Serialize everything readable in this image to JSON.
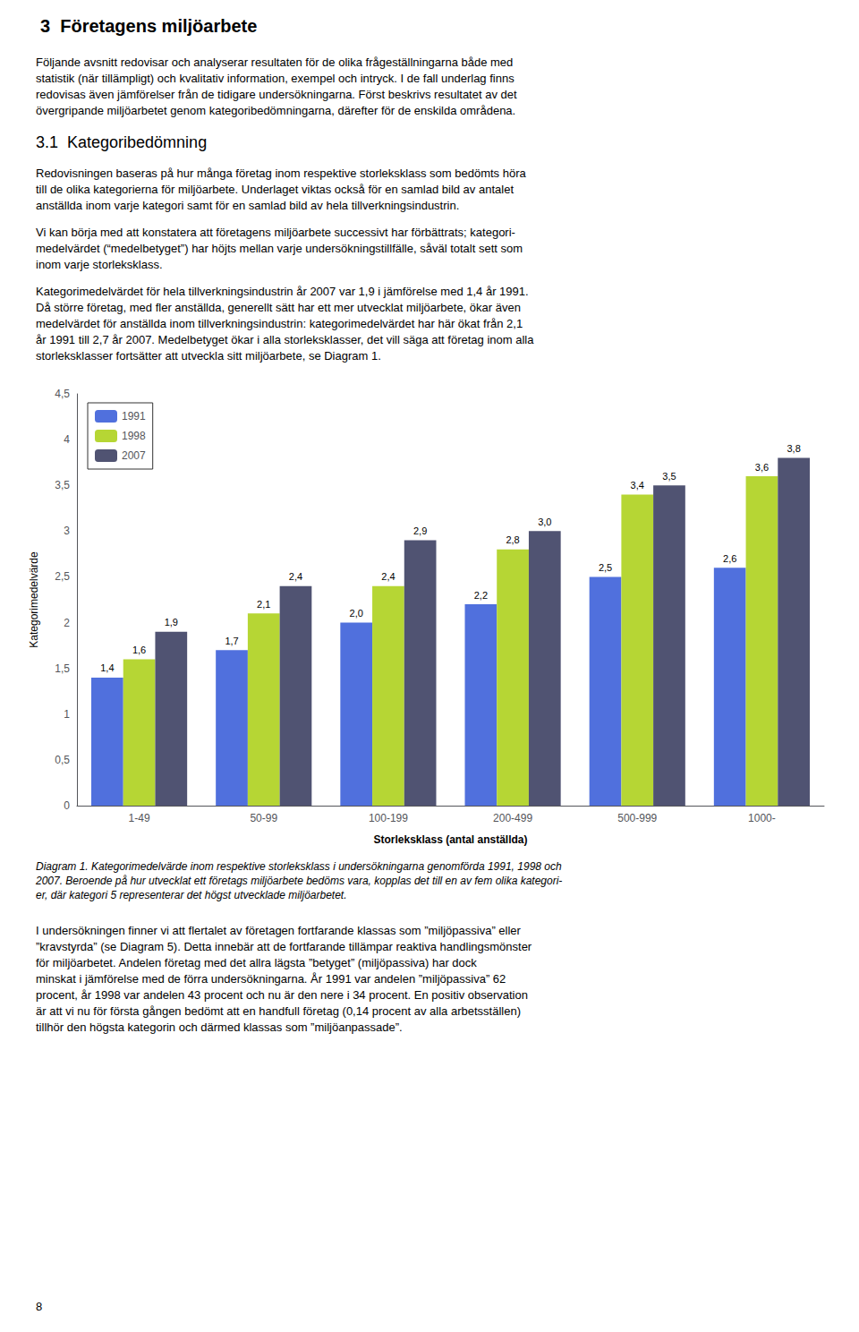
{
  "chart_data": {
    "type": "bar",
    "title": "3  Företagens miljöarbete",
    "subtitle": "3.1  Kategoribedömning",
    "annotations": [
      "Följande avsnitt redovisar och analyserar resultaten för de olika frågeställningarna både med\nstatistik (när tillämpligt) och kvalitativ information, exempel och intryck. I de fall underlag finns\nredovisas även jämförelser från de tidigare undersökningarna. Först beskrivs resultatet av det\növergripande miljöarbetet genom kategoribedömningarna, därefter för de enskilda områdena.",
      "Redovisningen baseras på hur många företag inom respektive storleksklass som bedömts höra\ntill de olika kategorierna för miljöarbete. Underlaget viktas också för en samlad bild av antalet\nanställda inom varje kategori samt för en samlad bild av hela tillverkningsindustrin.",
      "Vi kan börja med att konstatera att företagens miljöarbete successivt har förbättrats; kategori-\nmedelvärdet (“medelbetyget”) har höjts mellan varje undersökningstillfälle, såväl totalt sett som\ninom varje storleksklass.",
      "Kategorimedelvärdet för hela tillverkningsindustrin år 2007 var 1,9 i jämförelse med 1,4 år 1991.\nDå större företag, med fler anställda, generellt sätt har ett mer utvecklat miljöarbete, ökar även\nmedelvärdet för anställda inom tillverkningsindustrin: kategorimedelvärdet har här ökat från 2,1\når 1991 till 2,7 år 2007. Medelbetyget ökar i alla storleksklasser, det vill säga att företag inom alla\nstorleksklasser fortsätter att utveckla sitt miljöarbete, se Diagram 1.",
      "Diagram 1. Kategorimedelvärde inom respektive storleksklass i undersökningarna genomförda 1991, 1998 och\n2007. Beroende på hur utvecklat ett företags miljöarbete bedöms vara, kopplas det till en av fem olika kategori-\ner, där kategori 5 representerar det högst utvecklade miljöarbetet.",
      "I undersökningen finner vi att flertalet av företagen fortfarande klassas som ”miljöpassiva” eller\n”kravstyrda” (se Diagram 5). Detta innebär att de fortfarande tillämpar reaktiva handlingsmönster\nför miljöarbetet. Andelen företag med det allra lägsta ”betyget” (miljöpassiva) har dock\nminskat i jämförelse med de förra undersökningarna. År 1991 var andelen ”miljöpassiva” 62\nprocent, år 1998 var andelen 43 procent och nu är den nere i 34 procent. En positiv observation\när att vi nu för första gången bedömt att en handfull företag (0,14 procent av alla arbetsställen)\ntillhör den högsta kategorin och därmed klassas som ”miljöanpassade”.",
      "8"
    ],
    "xlabel": "Storleksklass (antal anställda)",
    "ylabel": "Kategorimedelvärde",
    "categories": [
      "1-49",
      "50-99",
      "100-199",
      "200-499",
      "500-999",
      "1000-"
    ],
    "series": [
      {
        "name": "1991",
        "values": [
          1.4,
          1.7,
          2.0,
          2.2,
          2.5,
          2.6
        ],
        "value_labels": [
          "1,4",
          "1,7",
          "2,0",
          "2,2",
          "2,5",
          "2,6"
        ]
      },
      {
        "name": "1998",
        "values": [
          1.6,
          2.1,
          2.4,
          2.8,
          3.4,
          3.6
        ],
        "value_labels": [
          "1,6",
          "2,1",
          "2,4",
          "2,8",
          "3,4",
          "3,6"
        ]
      },
      {
        "name": "2007",
        "values": [
          1.9,
          2.4,
          2.9,
          3.0,
          3.5,
          3.8
        ],
        "value_labels": [
          "1,9",
          "2,4",
          "2,9",
          "3,0",
          "3,5",
          "3,8"
        ]
      }
    ],
    "ylim": [
      0,
      4.5
    ],
    "yticks": [
      0,
      {
        "value": 0.5,
        "label": "0,5"
      },
      1,
      {
        "value": 1.5,
        "label": "1,5"
      },
      2,
      {
        "value": 2.5,
        "label": "2,5"
      },
      3,
      {
        "value": 3.5,
        "label": "3,5"
      },
      4,
      {
        "value": 4.5,
        "label": "4,5"
      }
    ],
    "data_labels": true,
    "legend": "upper left",
    "grid": false
  }
}
